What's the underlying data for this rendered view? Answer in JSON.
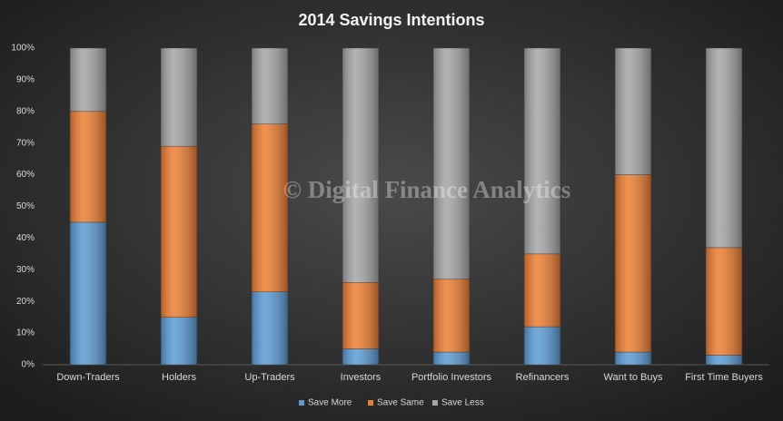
{
  "chart_data": {
    "type": "stacked_bar",
    "title": "2014 Savings  Intentions",
    "watermark": "© Digital Finance Analytics",
    "categories": [
      "Down-Traders",
      "Holders",
      "Up-Traders",
      "Investors",
      "Portfolio Investors",
      "Refinancers",
      "Want to Buys",
      "First Time Buyers"
    ],
    "series": [
      {
        "name": "Save More",
        "color": "#5b9bd5",
        "values": [
          45,
          15,
          23,
          5,
          4,
          12,
          4,
          3
        ]
      },
      {
        "name": "Save Same",
        "color": "#ed7d31",
        "values": [
          35,
          54,
          53,
          21,
          23,
          23,
          56,
          34
        ]
      },
      {
        "name": "Save Less",
        "color": "#a5a5a5",
        "values": [
          20,
          31,
          24,
          74,
          73,
          65,
          40,
          63
        ]
      }
    ],
    "ylim": [
      0,
      100
    ],
    "yticks": [
      {
        "value": 0,
        "label": "0%"
      },
      {
        "value": 10,
        "label": "10%"
      },
      {
        "value": 20,
        "label": "20%"
      },
      {
        "value": 30,
        "label": "30%"
      },
      {
        "value": 40,
        "label": "40%"
      },
      {
        "value": 50,
        "label": "50%"
      },
      {
        "value": 60,
        "label": "60%"
      },
      {
        "value": 70,
        "label": "70%"
      },
      {
        "value": 80,
        "label": "80%"
      },
      {
        "value": 90,
        "label": "90%"
      },
      {
        "value": 100,
        "label": "100%"
      }
    ],
    "legend": "bottom"
  }
}
